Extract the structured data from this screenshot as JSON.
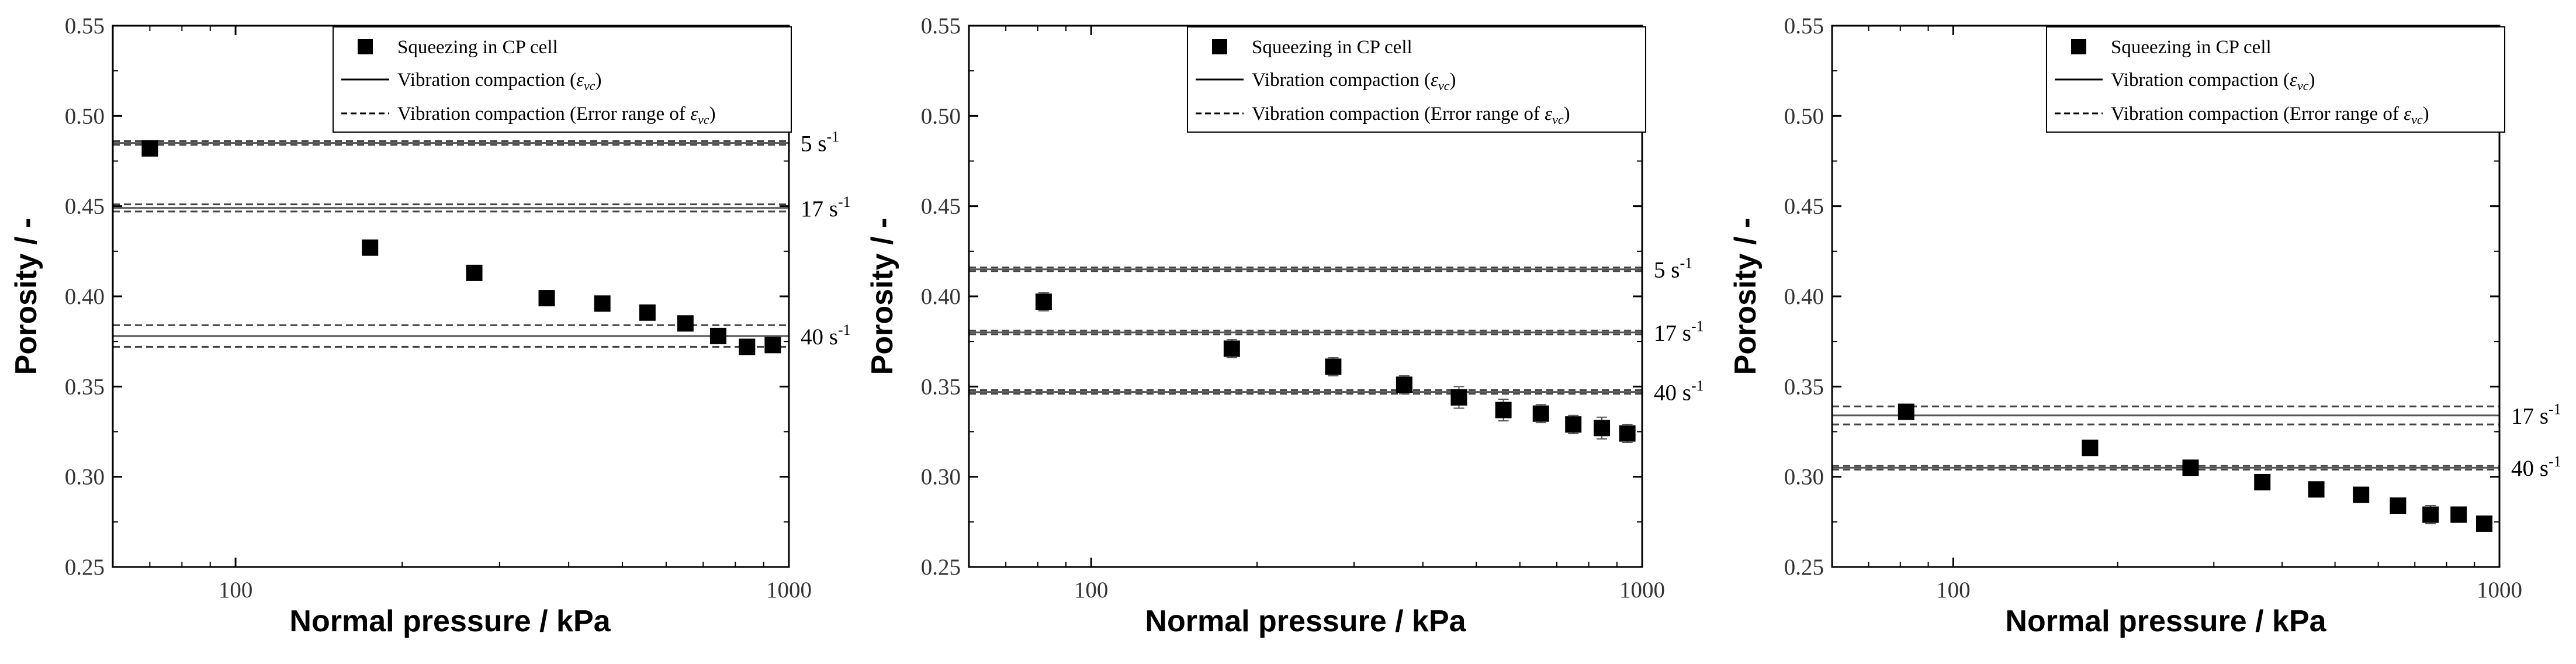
{
  "chart_data": [
    {
      "type": "scatter",
      "xlabel": "Normal pressure / kPa",
      "ylabel": "Porosity / -",
      "xscale": "log",
      "xlim": [
        60,
        1000
      ],
      "ylim": [
        0.25,
        0.55
      ],
      "x_ticks": [
        100,
        1000
      ],
      "y_ticks": [
        "0.25",
        "0.30",
        "0.35",
        "0.40",
        "0.45",
        "0.50",
        "0.55"
      ],
      "legend": {
        "position": "top-right",
        "entries": [
          {
            "marker": "square",
            "text": "Squeezing in CP cell"
          },
          {
            "line": "solid",
            "text": "Vibration compaction (",
            "symbol": "ε",
            "sub": "vc",
            "suffix": ")"
          },
          {
            "line": "dashed",
            "text": "Vibration compaction (Error range of ",
            "symbol": "ε",
            "sub": "vc",
            "suffix": ")"
          }
        ]
      },
      "series": [
        {
          "name": "Squeezing in CP cell",
          "points": [
            {
              "x": 70,
              "y": 0.482,
              "err": 0.002
            },
            {
              "x": 175,
              "y": 0.427,
              "err": 0.002
            },
            {
              "x": 270,
              "y": 0.413,
              "err": 0.002
            },
            {
              "x": 365,
              "y": 0.399,
              "err": 0.002
            },
            {
              "x": 460,
              "y": 0.396,
              "err": 0.002
            },
            {
              "x": 555,
              "y": 0.391,
              "err": 0.002
            },
            {
              "x": 650,
              "y": 0.385,
              "err": 0.002
            },
            {
              "x": 745,
              "y": 0.378,
              "err": 0.002
            },
            {
              "x": 840,
              "y": 0.372,
              "err": 0.002
            },
            {
              "x": 935,
              "y": 0.373,
              "err": 0.002
            }
          ]
        }
      ],
      "reference_lines": [
        {
          "label": "5 s",
          "sup": "-1",
          "value": 0.485,
          "err_low": 0.484,
          "err_high": 0.486
        },
        {
          "label": "17 s",
          "sup": "-1",
          "value": 0.449,
          "err_low": 0.447,
          "err_high": 0.451
        },
        {
          "label": "40 s",
          "sup": "-1",
          "value": 0.378,
          "err_low": 0.372,
          "err_high": 0.384
        }
      ]
    },
    {
      "type": "scatter",
      "xlabel": "Normal pressure / kPa",
      "ylabel": "Porosity / -",
      "xscale": "log",
      "xlim": [
        60,
        1000
      ],
      "ylim": [
        0.25,
        0.55
      ],
      "x_ticks": [
        100,
        1000
      ],
      "y_ticks": [
        "0.25",
        "0.30",
        "0.35",
        "0.40",
        "0.45",
        "0.50",
        "0.55"
      ],
      "legend": {
        "position": "top-right",
        "entries": [
          {
            "marker": "square",
            "text": "Squeezing in CP cell"
          },
          {
            "line": "solid",
            "text": "Vibration compaction (",
            "symbol": "ε",
            "sub": "vc",
            "suffix": ")"
          },
          {
            "line": "dashed",
            "text": "Vibration compaction (Error range of ",
            "symbol": "ε",
            "sub": "vc",
            "suffix": ")"
          }
        ]
      },
      "series": [
        {
          "name": "Squeezing in CP cell",
          "points": [
            {
              "x": 82,
              "y": 0.397,
              "err": 0.005
            },
            {
              "x": 180,
              "y": 0.371,
              "err": 0.005
            },
            {
              "x": 275,
              "y": 0.361,
              "err": 0.005
            },
            {
              "x": 370,
              "y": 0.351,
              "err": 0.005
            },
            {
              "x": 465,
              "y": 0.344,
              "err": 0.006
            },
            {
              "x": 560,
              "y": 0.337,
              "err": 0.006
            },
            {
              "x": 655,
              "y": 0.335,
              "err": 0.005
            },
            {
              "x": 750,
              "y": 0.329,
              "err": 0.005
            },
            {
              "x": 845,
              "y": 0.327,
              "err": 0.006
            },
            {
              "x": 940,
              "y": 0.324,
              "err": 0.005
            }
          ]
        }
      ],
      "reference_lines": [
        {
          "label": "5 s",
          "sup": "-1",
          "value": 0.415,
          "err_low": 0.414,
          "err_high": 0.416
        },
        {
          "label": "17 s",
          "sup": "-1",
          "value": 0.38,
          "err_low": 0.379,
          "err_high": 0.381
        },
        {
          "label": "40 s",
          "sup": "-1",
          "value": 0.347,
          "err_low": 0.346,
          "err_high": 0.348
        }
      ]
    },
    {
      "type": "scatter",
      "xlabel": "Normal pressure / kPa",
      "ylabel": "Porosity / -",
      "xscale": "log",
      "xlim": [
        60,
        1000
      ],
      "ylim": [
        0.25,
        0.55
      ],
      "x_ticks": [
        100,
        1000
      ],
      "y_ticks": [
        "0.25",
        "0.30",
        "0.35",
        "0.40",
        "0.45",
        "0.50",
        "0.55"
      ],
      "legend": {
        "position": "top-right",
        "entries": [
          {
            "marker": "square",
            "text": "Squeezing in CP cell"
          },
          {
            "line": "solid",
            "text": "Vibration compaction (",
            "symbol": "ε",
            "sub": "vc",
            "suffix": ")"
          },
          {
            "line": "dashed",
            "text": "Vibration compaction (Error range of ",
            "symbol": "ε",
            "sub": "vc",
            "suffix": ")"
          }
        ]
      },
      "series": [
        {
          "name": "Squeezing in CP cell",
          "points": [
            {
              "x": 82,
              "y": 0.336,
              "err": 0.004
            },
            {
              "x": 178,
              "y": 0.316,
              "err": 0.004
            },
            {
              "x": 272,
              "y": 0.305,
              "err": 0.003
            },
            {
              "x": 368,
              "y": 0.297,
              "err": 0.003
            },
            {
              "x": 462,
              "y": 0.293,
              "err": 0.004
            },
            {
              "x": 558,
              "y": 0.29,
              "err": 0.003
            },
            {
              "x": 652,
              "y": 0.284,
              "err": 0.004
            },
            {
              "x": 748,
              "y": 0.279,
              "err": 0.005
            },
            {
              "x": 842,
              "y": 0.279,
              "err": 0.003
            },
            {
              "x": 938,
              "y": 0.274,
              "err": 0.003
            }
          ]
        }
      ],
      "reference_lines": [
        {
          "label": "17 s",
          "sup": "-1",
          "value": 0.334,
          "err_low": 0.329,
          "err_high": 0.339
        },
        {
          "label": "40 s",
          "sup": "-1",
          "value": 0.305,
          "err_low": 0.304,
          "err_high": 0.306
        }
      ]
    }
  ]
}
